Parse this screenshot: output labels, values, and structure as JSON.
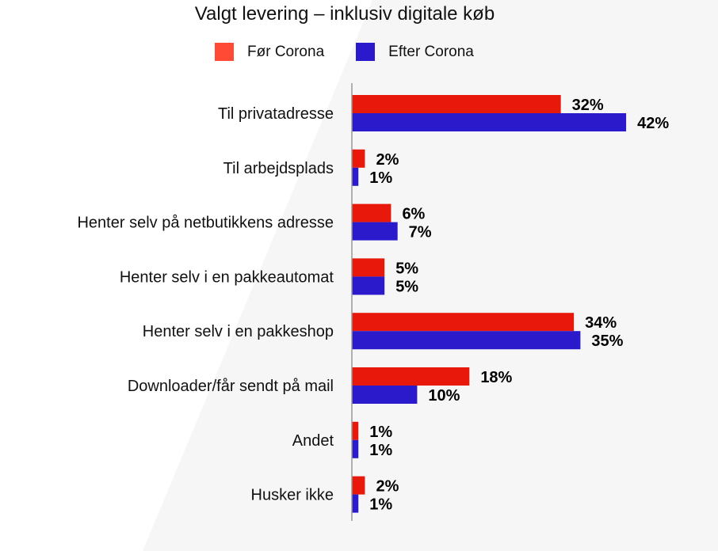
{
  "chart_data": {
    "type": "bar",
    "orientation": "horizontal",
    "title": "Valgt levering – inklusiv digitale køb",
    "categories": [
      "Til privatadresse",
      "Til arbejdsplads",
      "Henter selv på netbutikkens adresse",
      "Henter selv i en pakkeautomat",
      "Henter selv i en pakkeshop",
      "Downloader/får sendt på mail",
      "Andet",
      "Husker ikke"
    ],
    "series": [
      {
        "name": "Før Corona",
        "values": [
          32,
          2,
          6,
          5,
          34,
          18,
          1,
          2
        ],
        "color": "#e8190b",
        "legend_color": "#ff4a36"
      },
      {
        "name": "Efter Corona",
        "values": [
          42,
          1,
          7,
          5,
          35,
          10,
          1,
          1
        ],
        "color": "#2a1acb",
        "legend_color": "#2a1acb"
      }
    ],
    "value_suffix": "%",
    "xlim": [
      0,
      45
    ],
    "legend": "top-center",
    "grid": false
  }
}
